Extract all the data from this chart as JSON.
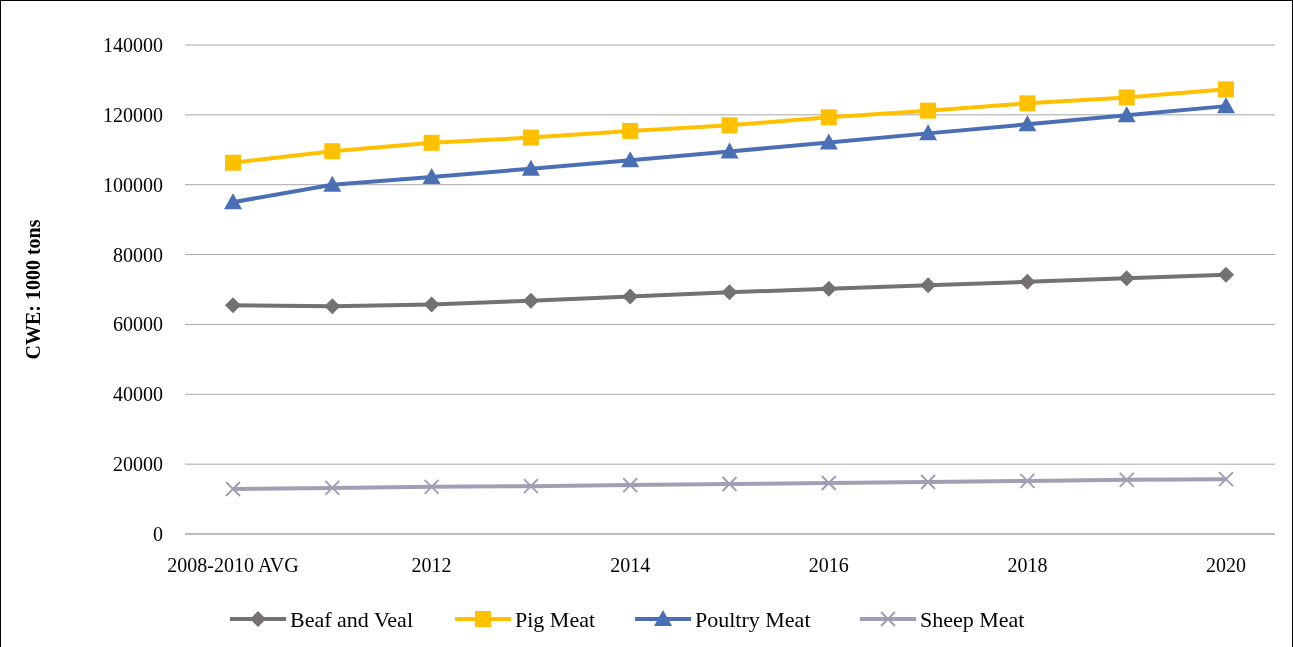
{
  "chart_data": {
    "type": "line",
    "ylabel": "CWE: 1000 tons",
    "categories": [
      "2008-2010 AVG",
      null,
      "2012",
      null,
      "2014",
      null,
      "2016",
      null,
      "2018",
      null,
      "2020"
    ],
    "series": [
      {
        "name": "Beaf and Veal",
        "color": "#767171",
        "marker": "diamond",
        "values": [
          65500,
          65200,
          65700,
          66800,
          68000,
          69200,
          70200,
          71200,
          72200,
          73200,
          74200
        ]
      },
      {
        "name": "Pig Meat",
        "color": "#ffc000",
        "marker": "square",
        "values": [
          106300,
          109600,
          112000,
          113500,
          115400,
          117000,
          119300,
          121200,
          123300,
          125000,
          127300
        ]
      },
      {
        "name": "Poultry Meat",
        "color": "#4a6fb5",
        "marker": "triangle",
        "values": [
          95000,
          100000,
          102200,
          104600,
          107000,
          109500,
          112100,
          114700,
          117300,
          119900,
          122500
        ]
      },
      {
        "name": "Sheep Meat",
        "color": "#9fa0b4",
        "marker": "cross",
        "values": [
          12900,
          13200,
          13500,
          13700,
          14000,
          14300,
          14600,
          14900,
          15200,
          15500,
          15700
        ]
      }
    ],
    "ylim": [
      0,
      140000
    ],
    "yticks": [
      0,
      20000,
      40000,
      60000,
      80000,
      100000,
      120000,
      140000
    ],
    "grid": "y",
    "legend": "bottom"
  }
}
